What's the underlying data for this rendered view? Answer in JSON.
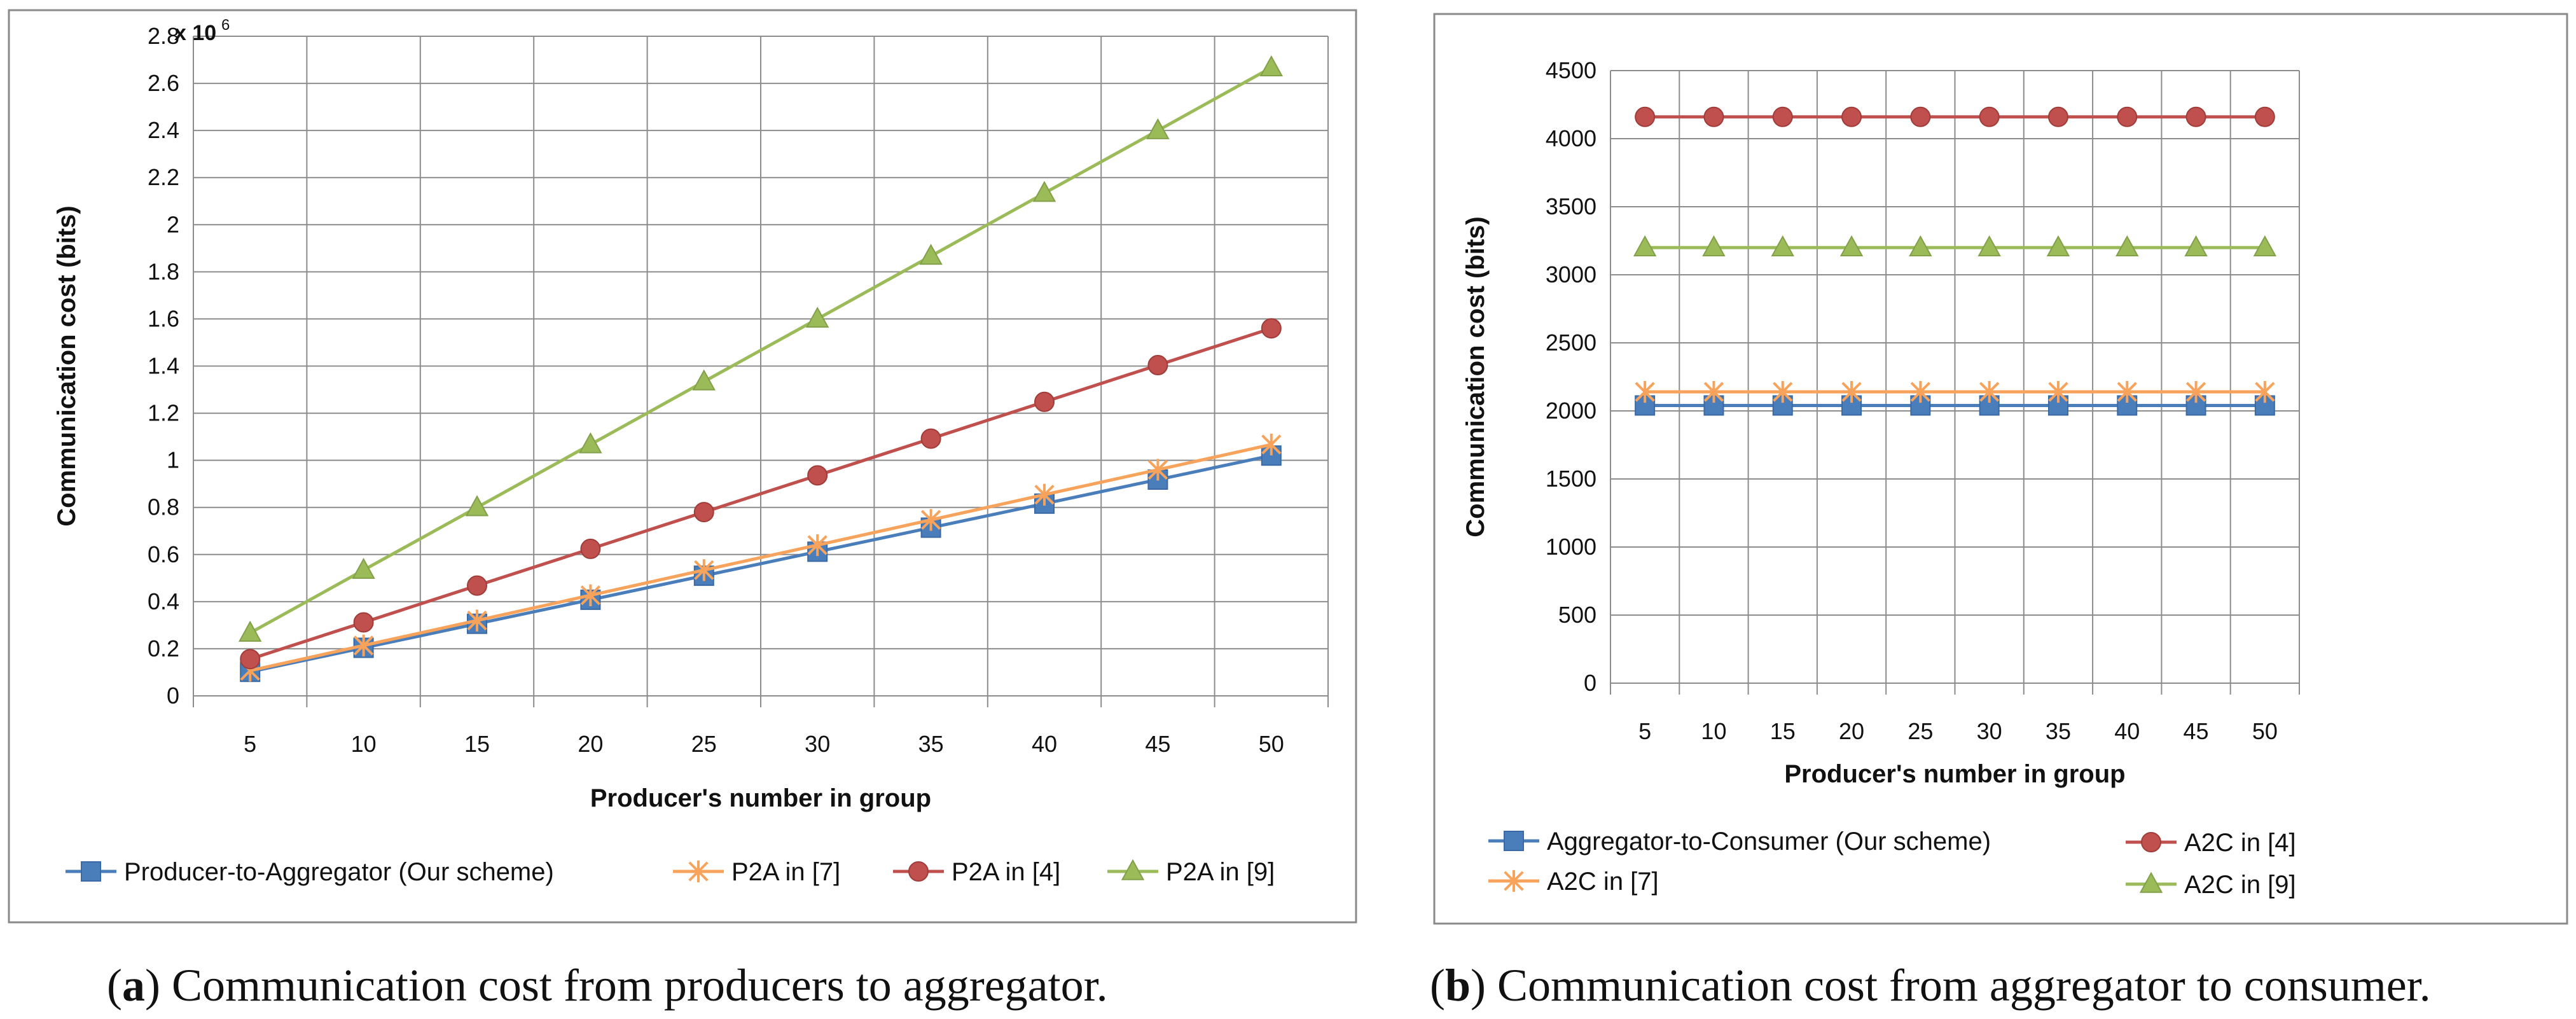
{
  "chart_data": [
    {
      "type": "line",
      "title": "",
      "xlabel": "Producer's number in group",
      "ylabel": "Communication cost (bits)",
      "y_multiplier_label": "x 10",
      "y_multiplier_exponent": "6",
      "categories": [
        "5",
        "10",
        "15",
        "20",
        "25",
        "30",
        "35",
        "40",
        "45",
        "50"
      ],
      "ylim": [
        0,
        2.8
      ],
      "yticks": [
        "0",
        "0.2",
        "0.4",
        "0.6",
        "0.8",
        "1",
        "1.2",
        "1.4",
        "1.6",
        "1.8",
        "2",
        "2.2",
        "2.4",
        "2.6",
        "2.8"
      ],
      "grid": true,
      "legend": "bottom",
      "series": [
        {
          "name": "Producer-to-Aggregator (Our scheme)",
          "color": "#4a7ebb",
          "marker": "square",
          "values": [
            0.102,
            0.204,
            0.306,
            0.408,
            0.51,
            0.612,
            0.714,
            0.816,
            0.918,
            1.02
          ]
        },
        {
          "name": "P2A in [7]",
          "color": "#f7a35c",
          "marker": "star",
          "values": [
            0.107,
            0.214,
            0.32,
            0.427,
            0.534,
            0.64,
            0.747,
            0.854,
            0.96,
            1.067
          ]
        },
        {
          "name": "P2A in [4]",
          "color": "#c0504d",
          "marker": "circle",
          "values": [
            0.156,
            0.312,
            0.468,
            0.624,
            0.78,
            0.936,
            1.092,
            1.248,
            1.404,
            1.56
          ]
        },
        {
          "name": "P2A in [9]",
          "color": "#9bbb59",
          "marker": "triangle",
          "values": [
            0.267,
            0.534,
            0.8,
            1.067,
            1.334,
            1.6,
            1.867,
            2.134,
            2.4,
            2.667
          ]
        }
      ]
    },
    {
      "type": "line",
      "title": "",
      "xlabel": "Producer's number in group",
      "ylabel": "Communication cost (bits)",
      "categories": [
        "5",
        "10",
        "15",
        "20",
        "25",
        "30",
        "35",
        "40",
        "45",
        "50"
      ],
      "ylim": [
        0,
        4500
      ],
      "yticks": [
        "0",
        "500",
        "1000",
        "1500",
        "2000",
        "2500",
        "3000",
        "3500",
        "4000",
        "4500"
      ],
      "grid": true,
      "legend": "bottom",
      "series": [
        {
          "name": "Aggregator-to-Consumer (Our scheme)",
          "color": "#4a7ebb",
          "marker": "square",
          "values": [
            2040,
            2040,
            2040,
            2040,
            2040,
            2040,
            2040,
            2040,
            2040,
            2040
          ]
        },
        {
          "name": "A2C in [4]",
          "color": "#c0504d",
          "marker": "circle",
          "values": [
            4160,
            4160,
            4160,
            4160,
            4160,
            4160,
            4160,
            4160,
            4160,
            4160
          ]
        },
        {
          "name": "A2C in [7]",
          "color": "#f7a35c",
          "marker": "star",
          "values": [
            2140,
            2140,
            2140,
            2140,
            2140,
            2140,
            2140,
            2140,
            2140,
            2140
          ]
        },
        {
          "name": "A2C in [9]",
          "color": "#9bbb59",
          "marker": "triangle",
          "values": [
            3200,
            3200,
            3200,
            3200,
            3200,
            3200,
            3200,
            3200,
            3200,
            3200
          ]
        }
      ]
    }
  ],
  "captions": [
    {
      "label": "a",
      "text": " Communication cost from producers to aggregator."
    },
    {
      "label": "b",
      "text": " Communication cost from aggregator to consumer."
    }
  ]
}
